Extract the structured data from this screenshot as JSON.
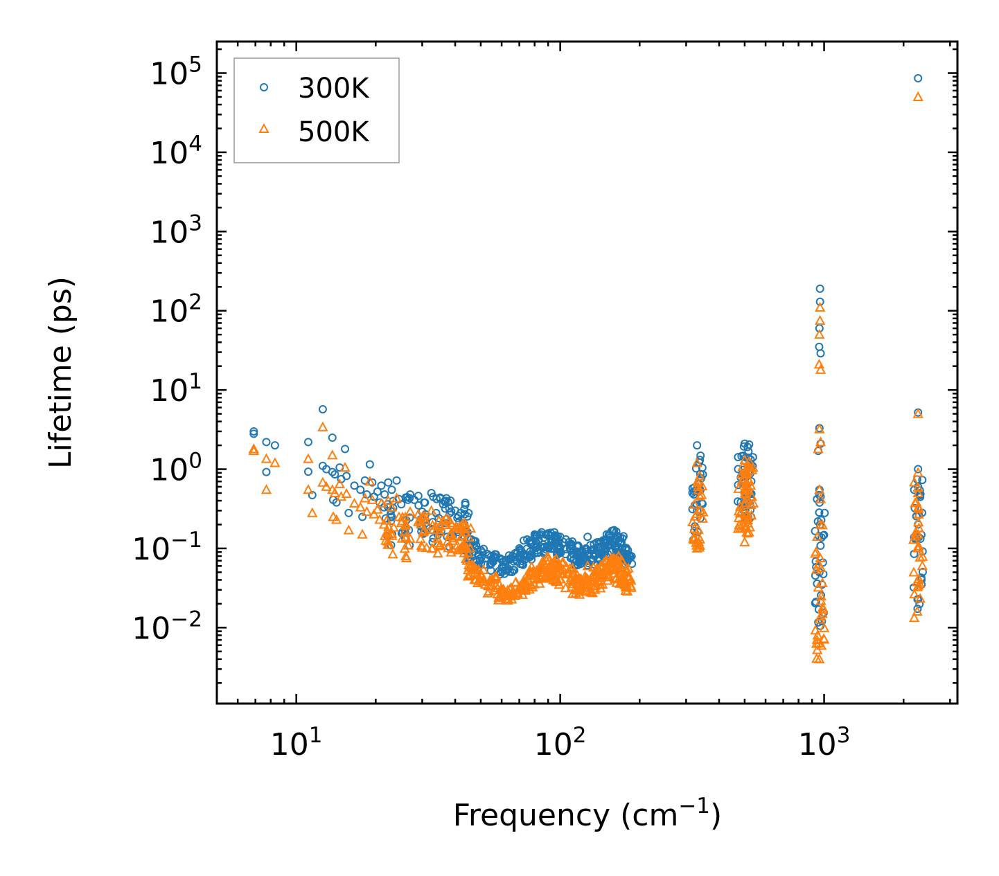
{
  "chart_data": {
    "type": "scatter",
    "title": "",
    "xlabel": {
      "main": "Frequency (cm",
      "sup": "−1",
      "tail": ")"
    },
    "ylabel": "Lifetime (ps)",
    "xscale": "log",
    "yscale": "log",
    "xlim": [
      5,
      3200
    ],
    "ylim": [
      0.0011,
      250000
    ],
    "legend_position": "top-left",
    "x_ticks": [
      {
        "value": 10,
        "base": "10",
        "exp": "1"
      },
      {
        "value": 100,
        "base": "10",
        "exp": "2"
      },
      {
        "value": 1000,
        "base": "10",
        "exp": "3"
      }
    ],
    "y_ticks": [
      {
        "value": 0.01,
        "base": "10",
        "exp": "−2"
      },
      {
        "value": 0.1,
        "base": "10",
        "exp": "−1"
      },
      {
        "value": 1,
        "base": "10",
        "exp": "0"
      },
      {
        "value": 10,
        "base": "10",
        "exp": "1"
      },
      {
        "value": 100,
        "base": "10",
        "exp": "2"
      },
      {
        "value": 1000,
        "base": "10",
        "exp": "3"
      },
      {
        "value": 10000,
        "base": "10",
        "exp": "4"
      },
      {
        "value": 100000,
        "base": "10",
        "exp": "5"
      }
    ],
    "series": [
      {
        "name": "300K",
        "marker": "circle",
        "color": "#1f77b4",
        "points": [
          [
            6.9,
            3.0
          ],
          [
            6.9,
            2.8
          ],
          [
            7.7,
            2.2
          ],
          [
            7.7,
            0.92
          ],
          [
            8.3,
            2.0
          ],
          [
            11.1,
            2.2
          ],
          [
            11.1,
            0.93
          ],
          [
            11.5,
            0.47
          ],
          [
            12.6,
            5.7
          ],
          [
            12.6,
            1.1
          ],
          [
            13.0,
            1.0
          ],
          [
            13.7,
            2.5
          ],
          [
            13.7,
            0.92
          ],
          [
            13.8,
            0.41
          ],
          [
            14.0,
            0.86
          ],
          [
            14.2,
            0.38
          ],
          [
            14.6,
            1.05
          ],
          [
            14.8,
            0.75
          ],
          [
            15.3,
            1.8
          ],
          [
            15.5,
            0.82
          ],
          [
            15.8,
            0.28
          ],
          [
            16.6,
            0.62
          ],
          [
            17.5,
            0.55
          ],
          [
            17.8,
            0.25
          ],
          [
            18.2,
            0.72
          ],
          [
            18.5,
            0.48
          ],
          [
            19.0,
            1.15
          ],
          [
            19.4,
            0.68
          ],
          [
            19.7,
            0.45
          ],
          [
            20.3,
            0.52
          ],
          [
            20.7,
            0.38
          ],
          [
            21.0,
            0.62
          ],
          [
            21.5,
            0.33
          ],
          [
            22.3,
            0.68
          ],
          [
            23.0,
            0.55
          ],
          [
            24.0,
            0.72
          ],
          [
            24.5,
            0.42
          ],
          [
            25.0,
            0.36
          ],
          [
            26.0,
            0.44
          ],
          [
            27.0,
            0.48
          ],
          [
            28.0,
            0.41
          ],
          [
            29.0,
            0.46
          ],
          [
            30.5,
            0.38
          ],
          [
            32.5,
            0.5
          ],
          [
            34.0,
            0.42
          ],
          [
            36.0,
            0.36
          ],
          [
            38.0,
            0.32
          ],
          [
            40.0,
            0.3
          ],
          [
            42.0,
            0.28
          ],
          [
            43.5,
            0.27
          ],
          [
            46,
            0.13
          ],
          [
            48,
            0.11
          ],
          [
            50,
            0.095
          ],
          [
            53,
            0.085
          ],
          [
            56,
            0.078
          ],
          [
            60,
            0.072
          ],
          [
            65,
            0.075
          ],
          [
            70,
            0.1
          ],
          [
            75,
            0.13
          ],
          [
            80,
            0.15
          ],
          [
            85,
            0.16
          ],
          [
            90,
            0.155
          ],
          [
            95,
            0.16
          ],
          [
            100,
            0.14
          ],
          [
            105,
            0.13
          ],
          [
            110,
            0.11
          ],
          [
            120,
            0.09
          ],
          [
            127,
            0.14
          ],
          [
            130,
            0.11
          ],
          [
            140,
            0.12
          ],
          [
            150,
            0.15
          ],
          [
            160,
            0.17
          ],
          [
            170,
            0.12
          ],
          [
            178,
            0.085
          ],
          [
            330,
            2.0
          ],
          [
            330,
            0.3
          ],
          [
            500,
            2.1
          ],
          [
            500,
            0.25
          ],
          [
            520,
            2.05
          ],
          [
            965,
            190
          ],
          [
            965,
            130
          ],
          [
            960,
            60
          ],
          [
            958,
            35
          ],
          [
            970,
            29
          ],
          [
            960,
            3.3
          ],
          [
            970,
            2.1
          ],
          [
            950,
            1.7
          ],
          [
            960,
            0.55
          ],
          [
            970,
            0.45
          ],
          [
            965,
            0.2
          ],
          [
            960,
            0.05
          ],
          [
            2270,
            86000
          ],
          [
            2270,
            5.2
          ],
          [
            2270,
            1.0
          ],
          [
            2270,
            0.6
          ],
          [
            2270,
            0.2
          ]
        ],
        "bands": [
          [
            22.5,
            0.1,
            0.55
          ],
          [
            26,
            0.1,
            0.5
          ],
          [
            30,
            0.11,
            0.45
          ],
          [
            34,
            0.12,
            0.5
          ],
          [
            38,
            0.1,
            0.45
          ],
          [
            42,
            0.09,
            0.38
          ],
          [
            44,
            0.08,
            0.3
          ],
          [
            46.5,
            0.07,
            0.13
          ],
          [
            50,
            0.06,
            0.1
          ],
          [
            55,
            0.05,
            0.085
          ],
          [
            60,
            0.045,
            0.08
          ],
          [
            65,
            0.05,
            0.085
          ],
          [
            70,
            0.06,
            0.11
          ],
          [
            75,
            0.07,
            0.13
          ],
          [
            80,
            0.08,
            0.15
          ],
          [
            85,
            0.085,
            0.16
          ],
          [
            90,
            0.09,
            0.16
          ],
          [
            95,
            0.085,
            0.16
          ],
          [
            100,
            0.08,
            0.15
          ],
          [
            108,
            0.07,
            0.13
          ],
          [
            115,
            0.06,
            0.11
          ],
          [
            122,
            0.055,
            0.1
          ],
          [
            130,
            0.06,
            0.11
          ],
          [
            138,
            0.07,
            0.12
          ],
          [
            145,
            0.08,
            0.14
          ],
          [
            152,
            0.085,
            0.16
          ],
          [
            160,
            0.09,
            0.17
          ],
          [
            168,
            0.08,
            0.15
          ],
          [
            175,
            0.07,
            0.12
          ],
          [
            180,
            0.06,
            0.09
          ],
          [
            330,
            0.12,
            1.95
          ],
          [
            335,
            0.15,
            1.6
          ],
          [
            490,
            0.25,
            2.0
          ],
          [
            500,
            0.22,
            2.1
          ],
          [
            510,
            0.23,
            2.0
          ],
          [
            520,
            0.25,
            1.9
          ],
          [
            962,
            0.008,
            0.5
          ],
          [
            968,
            0.01,
            0.4
          ],
          [
            2268,
            0.015,
            0.95
          ],
          [
            2273,
            0.02,
            0.8
          ]
        ]
      },
      {
        "name": "500K",
        "marker": "triangle",
        "color": "#ff7f0e",
        "points": [
          [
            6.9,
            1.8
          ],
          [
            6.9,
            1.7
          ],
          [
            7.7,
            1.35
          ],
          [
            7.7,
            0.55
          ],
          [
            8.3,
            1.2
          ],
          [
            11.1,
            1.35
          ],
          [
            11.1,
            0.55
          ],
          [
            11.5,
            0.28
          ],
          [
            12.6,
            3.4
          ],
          [
            12.6,
            0.68
          ],
          [
            13.0,
            0.6
          ],
          [
            13.7,
            1.5
          ],
          [
            13.7,
            0.55
          ],
          [
            13.8,
            0.25
          ],
          [
            14.0,
            0.5
          ],
          [
            14.2,
            0.23
          ],
          [
            14.6,
            0.65
          ],
          [
            14.8,
            0.45
          ],
          [
            15.3,
            1.05
          ],
          [
            15.5,
            0.49
          ],
          [
            15.8,
            0.17
          ],
          [
            16.6,
            0.37
          ],
          [
            17.5,
            0.33
          ],
          [
            17.8,
            0.15
          ],
          [
            18.2,
            0.43
          ],
          [
            18.5,
            0.29
          ],
          [
            19.0,
            0.7
          ],
          [
            19.4,
            0.41
          ],
          [
            19.7,
            0.27
          ],
          [
            20.3,
            0.31
          ],
          [
            20.7,
            0.23
          ],
          [
            21.0,
            0.37
          ],
          [
            21.5,
            0.2
          ],
          [
            22.3,
            0.4
          ],
          [
            23.0,
            0.33
          ],
          [
            24.0,
            0.43
          ],
          [
            24.5,
            0.25
          ],
          [
            25.0,
            0.21
          ],
          [
            27.0,
            0.29
          ],
          [
            29.0,
            0.27
          ],
          [
            32.5,
            0.3
          ],
          [
            36.0,
            0.22
          ],
          [
            40.0,
            0.18
          ],
          [
            43.5,
            0.16
          ],
          [
            46,
            0.06
          ],
          [
            50,
            0.048
          ],
          [
            55,
            0.04
          ],
          [
            60,
            0.028
          ],
          [
            65,
            0.025
          ],
          [
            70,
            0.03
          ],
          [
            75,
            0.04
          ],
          [
            80,
            0.05
          ],
          [
            85,
            0.055
          ],
          [
            90,
            0.05
          ],
          [
            95,
            0.07
          ],
          [
            100,
            0.055
          ],
          [
            110,
            0.04
          ],
          [
            120,
            0.032
          ],
          [
            127,
            0.06
          ],
          [
            130,
            0.04
          ],
          [
            140,
            0.045
          ],
          [
            150,
            0.06
          ],
          [
            160,
            0.07
          ],
          [
            170,
            0.05
          ],
          [
            178,
            0.035
          ],
          [
            330,
            1.2
          ],
          [
            330,
            0.1
          ],
          [
            500,
            1.3
          ],
          [
            500,
            0.12
          ],
          [
            520,
            1.25
          ],
          [
            965,
            110
          ],
          [
            965,
            75
          ],
          [
            960,
            50
          ],
          [
            958,
            21
          ],
          [
            970,
            18
          ],
          [
            960,
            3.2
          ],
          [
            970,
            2.2
          ],
          [
            950,
            1.8
          ],
          [
            960,
            0.55
          ],
          [
            970,
            0.42
          ],
          [
            965,
            0.2
          ],
          [
            960,
            0.004
          ],
          [
            2270,
            50000
          ],
          [
            2270,
            5.0
          ],
          [
            2270,
            0.9
          ],
          [
            2270,
            0.5
          ],
          [
            2270,
            0.15
          ]
        ],
        "bands": [
          [
            22.5,
            0.07,
            0.3
          ],
          [
            26,
            0.075,
            0.28
          ],
          [
            30,
            0.08,
            0.26
          ],
          [
            34,
            0.085,
            0.28
          ],
          [
            38,
            0.08,
            0.25
          ],
          [
            42,
            0.075,
            0.22
          ],
          [
            44,
            0.07,
            0.18
          ],
          [
            46.5,
            0.04,
            0.065
          ],
          [
            50,
            0.033,
            0.055
          ],
          [
            55,
            0.027,
            0.045
          ],
          [
            60,
            0.022,
            0.035
          ],
          [
            65,
            0.021,
            0.033
          ],
          [
            70,
            0.024,
            0.04
          ],
          [
            75,
            0.028,
            0.05
          ],
          [
            80,
            0.032,
            0.06
          ],
          [
            85,
            0.035,
            0.07
          ],
          [
            90,
            0.036,
            0.08
          ],
          [
            95,
            0.034,
            0.075
          ],
          [
            100,
            0.032,
            0.07
          ],
          [
            108,
            0.03,
            0.06
          ],
          [
            115,
            0.026,
            0.05
          ],
          [
            122,
            0.024,
            0.045
          ],
          [
            130,
            0.026,
            0.05
          ],
          [
            138,
            0.03,
            0.06
          ],
          [
            145,
            0.034,
            0.07
          ],
          [
            152,
            0.038,
            0.08
          ],
          [
            160,
            0.04,
            0.085
          ],
          [
            168,
            0.036,
            0.075
          ],
          [
            175,
            0.032,
            0.06
          ],
          [
            180,
            0.028,
            0.045
          ],
          [
            330,
            0.09,
            1.1
          ],
          [
            335,
            0.1,
            0.9
          ],
          [
            490,
            0.15,
            1.2
          ],
          [
            500,
            0.13,
            1.3
          ],
          [
            510,
            0.14,
            1.2
          ],
          [
            520,
            0.2,
            1.1
          ],
          [
            962,
            0.003,
            0.3
          ],
          [
            968,
            0.004,
            0.25
          ],
          [
            2268,
            0.011,
            0.9
          ],
          [
            2273,
            0.012,
            0.7
          ]
        ]
      }
    ]
  }
}
